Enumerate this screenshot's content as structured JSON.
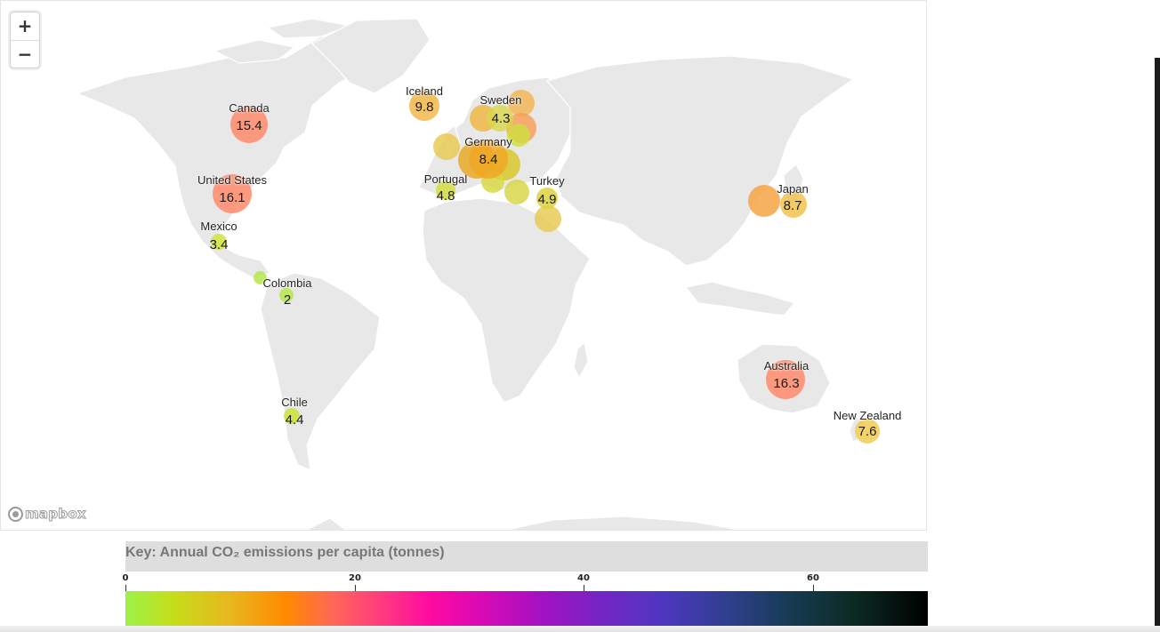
{
  "controls": {
    "zoom_in": "+",
    "zoom_out": "−"
  },
  "attribution": {
    "logo_text": "mapbox"
  },
  "key": {
    "title": "Key: Annual CO₂ emissions per capita (tonnes)",
    "ticks": [
      "0",
      "20",
      "40",
      "60"
    ],
    "scale_min": 0,
    "scale_max": 70,
    "gradient_colors": [
      "#9cf24a",
      "#c6dd1a",
      "#e8b71e",
      "#ff8a00",
      "#ff6659",
      "#ff3a80",
      "#ff0aa1",
      "#d40ab7",
      "#a212c2",
      "#7226c5",
      "#4d37bf",
      "#2f3f8f",
      "#163b52",
      "#0b2a22",
      "#000000"
    ]
  },
  "labeled_countries": [
    {
      "name": "Canada",
      "value": "15.4",
      "color": "#ff8a6a"
    },
    {
      "name": "United States",
      "value": "16.1",
      "color": "#ff8a6a"
    },
    {
      "name": "Mexico",
      "value": "3.4",
      "color": "#cfe53a"
    },
    {
      "name": "Colombia",
      "value": "2",
      "color": "#b6e84a"
    },
    {
      "name": "Chile",
      "value": "4.4",
      "color": "#cde23a"
    },
    {
      "name": "Iceland",
      "value": "9.8",
      "color": "#f2b94a"
    },
    {
      "name": "Sweden",
      "value": "4.3",
      "color": "#d9d74a"
    },
    {
      "name": "Germany",
      "value": "8.4",
      "color": "#f0a622"
    },
    {
      "name": "Portugal",
      "value": "4.8",
      "color": "#d3dc3e"
    },
    {
      "name": "Turkey",
      "value": "4.9",
      "color": "#dcd33c"
    },
    {
      "name": "Japan",
      "value": "8.7",
      "color": "#f3c24f"
    },
    {
      "name": "Australia",
      "value": "16.3",
      "color": "#ff8a6a"
    },
    {
      "name": "New Zealand",
      "value": "7.6",
      "color": "#f1cd52"
    }
  ],
  "unlabeled_markers": [
    {
      "id": "europe-west",
      "color": "#e7c84b"
    },
    {
      "id": "europe-north-a",
      "color": "#f0b33c"
    },
    {
      "id": "europe-north-b",
      "color": "#f4b24d"
    },
    {
      "id": "europe-east-a",
      "color": "#f79c55"
    },
    {
      "id": "europe-east-b",
      "color": "#cde03c"
    },
    {
      "id": "europe-central-a",
      "color": "#e9a41c"
    },
    {
      "id": "europe-central-b",
      "color": "#d8c621"
    },
    {
      "id": "europe-south",
      "color": "#d7d83a"
    },
    {
      "id": "balkans",
      "color": "#d6d640"
    },
    {
      "id": "middle-east",
      "color": "#e7c84b"
    },
    {
      "id": "china",
      "color": "#f6a544"
    },
    {
      "id": "central-america",
      "color": "#b6e84a"
    }
  ]
}
